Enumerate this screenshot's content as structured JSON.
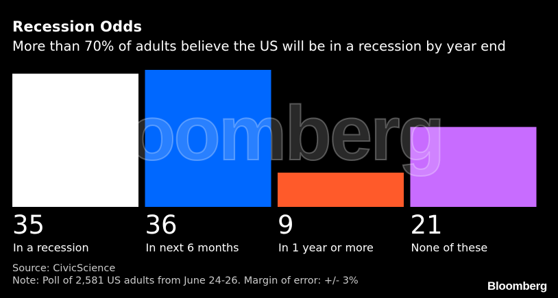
{
  "title": "Recession Odds",
  "subtitle": "More than 70% of adults believe the US will be in a recession by year end",
  "watermark": "Bloomberg",
  "source": "Source: CivicScience",
  "note": "Note: Poll of 2,581 US adults from June 24-26. Margin of error: +/- 3%",
  "logo": "Bloomberg",
  "chart_data": {
    "type": "bar",
    "categories": [
      "In a recession",
      "In next 6 months",
      "In 1 year or more",
      "None of these"
    ],
    "values": [
      35,
      36,
      9,
      21
    ],
    "value_labels": [
      "35",
      "36",
      "9",
      "21"
    ],
    "colors": [
      "#ffffff",
      "#0068ff",
      "#ff5a2a",
      "#c86cff"
    ],
    "ylim": [
      0,
      36
    ],
    "title": "Recession Odds",
    "xlabel": "",
    "ylabel": "",
    "grid": false,
    "legend": "none"
  }
}
